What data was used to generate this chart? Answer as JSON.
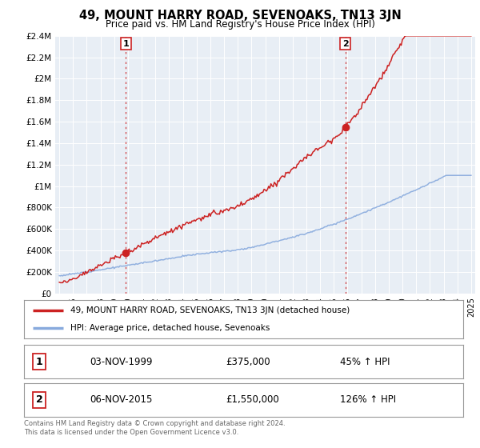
{
  "title": "49, MOUNT HARRY ROAD, SEVENOAKS, TN13 3JN",
  "subtitle": "Price paid vs. HM Land Registry's House Price Index (HPI)",
  "legend_property": "49, MOUNT HARRY ROAD, SEVENOAKS, TN13 3JN (detached house)",
  "legend_hpi": "HPI: Average price, detached house, Sevenoaks",
  "sale1_label": "1",
  "sale1_date": "03-NOV-1999",
  "sale1_price": "£375,000",
  "sale1_pct": "45% ↑ HPI",
  "sale2_label": "2",
  "sale2_date": "06-NOV-2015",
  "sale2_price": "£1,550,000",
  "sale2_pct": "126% ↑ HPI",
  "footer": "Contains HM Land Registry data © Crown copyright and database right 2024.\nThis data is licensed under the Open Government Licence v3.0.",
  "property_color": "#cc2222",
  "hpi_color": "#88aadd",
  "sale_marker_color": "#cc2222",
  "ylim": [
    0,
    2400000
  ],
  "yticks": [
    0,
    200000,
    400000,
    600000,
    800000,
    1000000,
    1200000,
    1400000,
    1600000,
    1800000,
    2000000,
    2200000,
    2400000
  ],
  "ytick_labels": [
    "£0",
    "£200K",
    "£400K",
    "£600K",
    "£800K",
    "£1M",
    "£1.2M",
    "£1.4M",
    "£1.6M",
    "£1.8M",
    "£2M",
    "£2.2M",
    "£2.4M"
  ],
  "xlim_start": 1994.7,
  "xlim_end": 2025.3,
  "sale1_x": 1999.84,
  "sale1_y": 375000,
  "sale2_x": 2015.84,
  "sale2_y": 1550000,
  "chart_bg_color": "#e8eef5",
  "background_color": "#ffffff",
  "grid_color": "#ffffff"
}
